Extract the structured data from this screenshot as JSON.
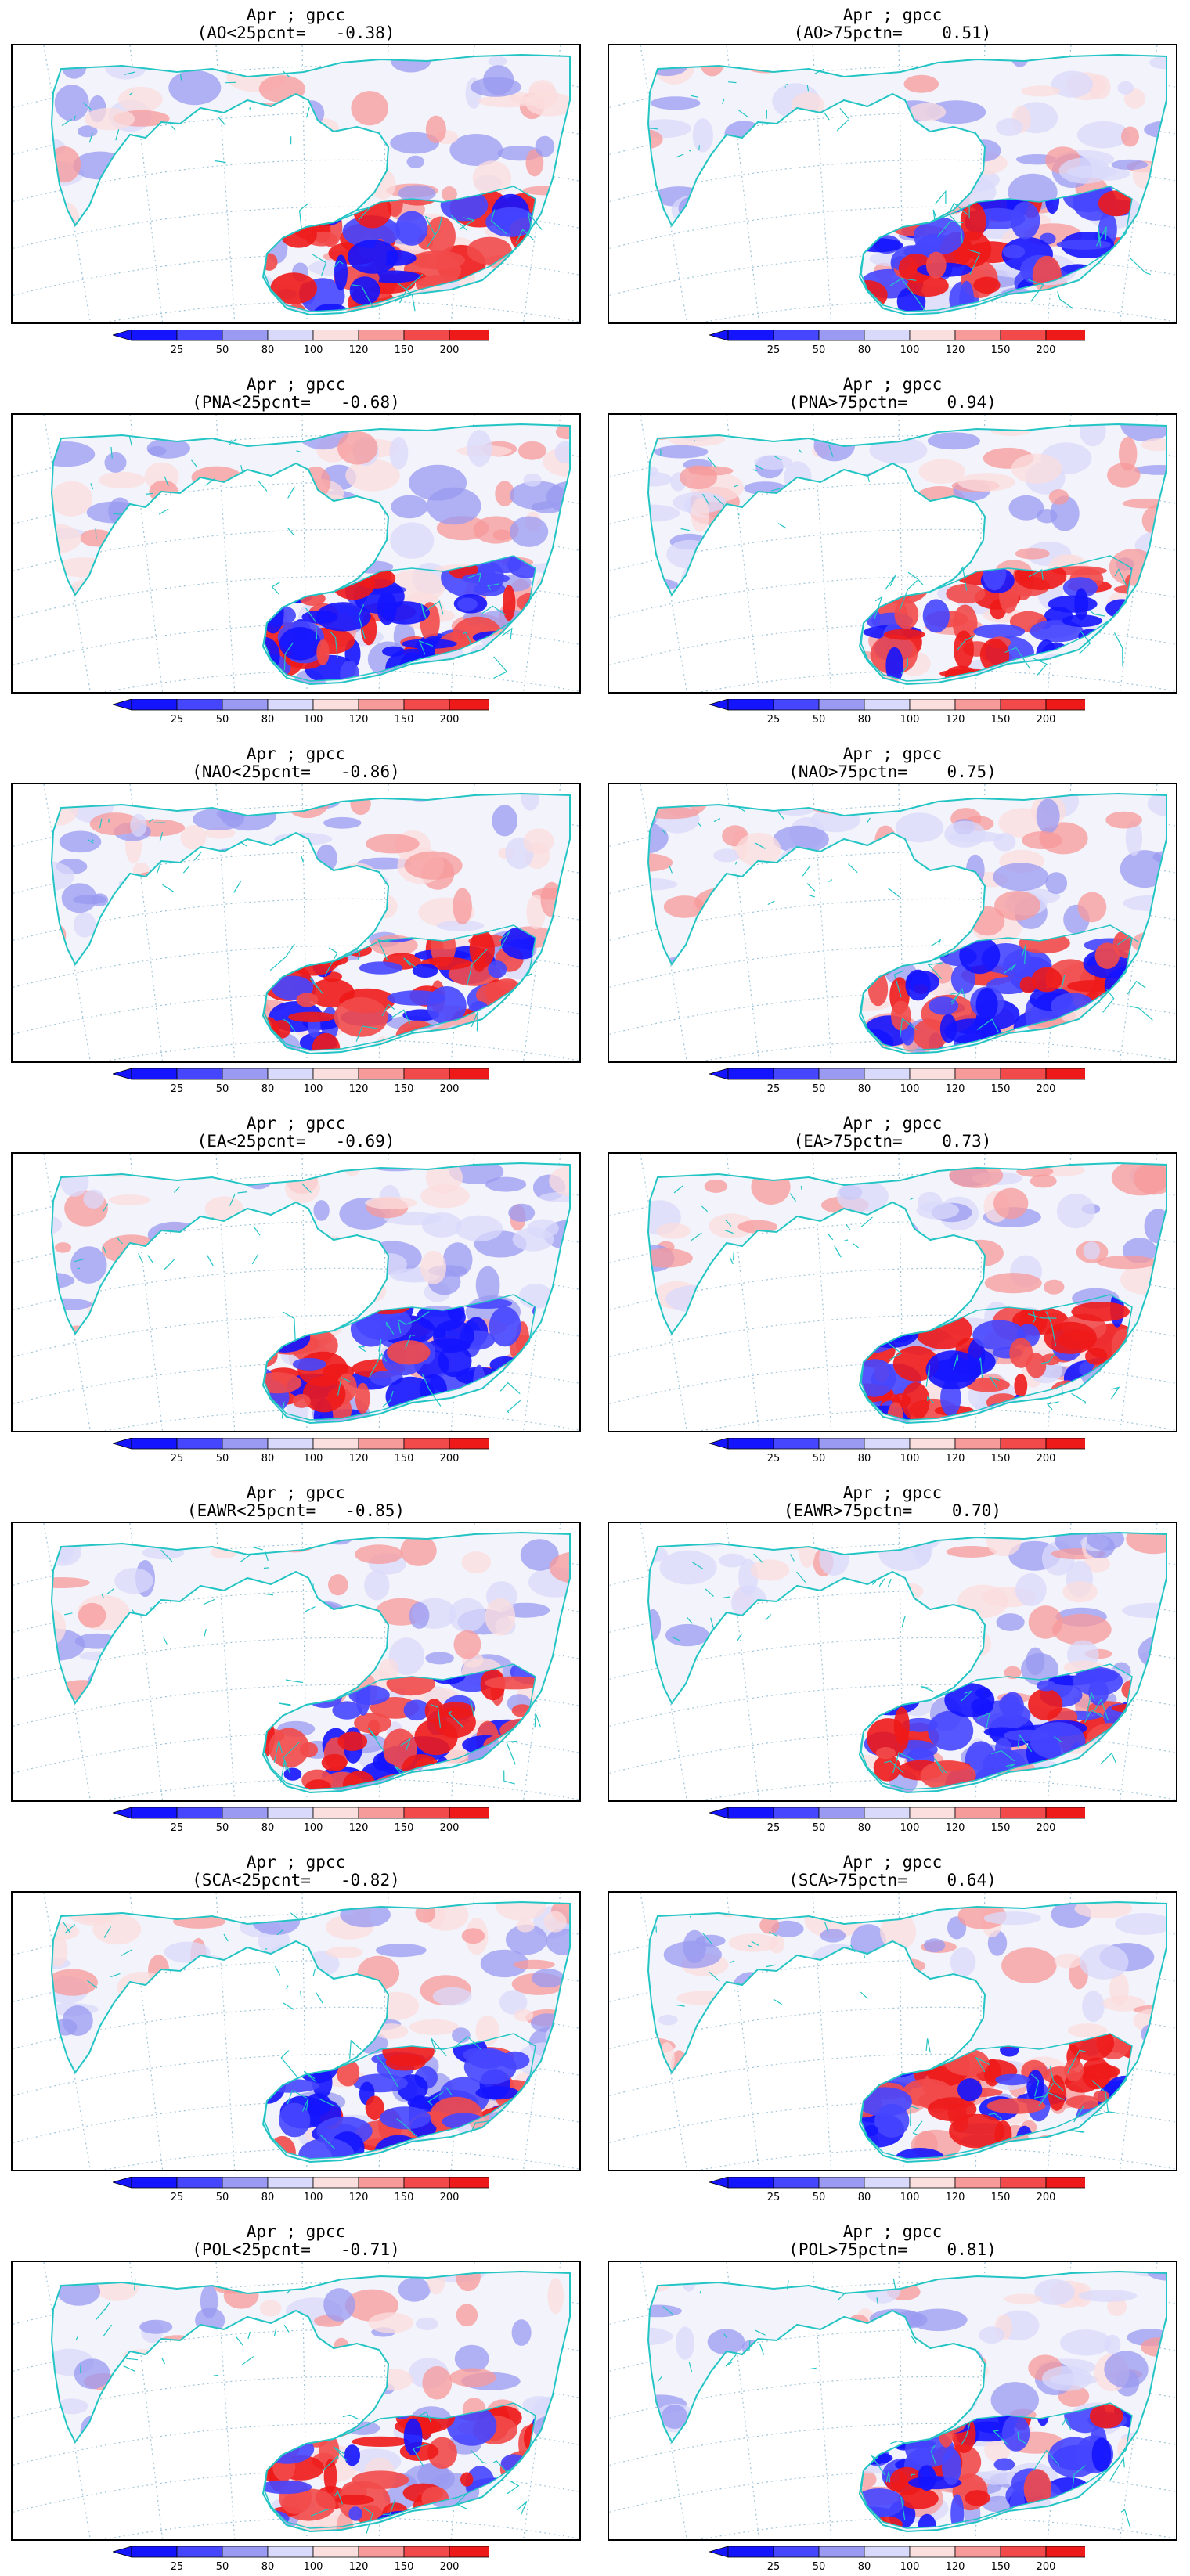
{
  "colorbar": {
    "ticks": [
      "25",
      "50",
      "80",
      "100",
      "120",
      "150",
      "200"
    ],
    "colors": [
      "#1414ff",
      "#4646ff",
      "#9a9af2",
      "#d9d9fb",
      "#fbdede",
      "#f79a9a",
      "#f24a4a",
      "#ee1a1a"
    ]
  },
  "colors": {
    "coast": "#22c4c4",
    "gridline": "#9fc3d8",
    "frame": "#000000"
  },
  "panels": [
    {
      "line1": "Apr ; gpcc",
      "line2": "(AO<25pcnt=   -0.38)"
    },
    {
      "line1": "Apr ; gpcc",
      "line2": "(AO>75pctn=    0.51)"
    },
    {
      "line1": "Apr ; gpcc",
      "line2": "(PNA<25pcnt=   -0.68)"
    },
    {
      "line1": "Apr ; gpcc",
      "line2": "(PNA>75pctn=    0.94)"
    },
    {
      "line1": "Apr ; gpcc",
      "line2": "(NAO<25pcnt=   -0.86)"
    },
    {
      "line1": "Apr ; gpcc",
      "line2": "(NAO>75pctn=    0.75)"
    },
    {
      "line1": "Apr ; gpcc",
      "line2": "(EA<25pcnt=   -0.69)"
    },
    {
      "line1": "Apr ; gpcc",
      "line2": "(EA>75pctn=    0.73)"
    },
    {
      "line1": "Apr ; gpcc",
      "line2": "(EAWR<25pcnt=   -0.85)"
    },
    {
      "line1": "Apr ; gpcc",
      "line2": "(EAWR>75pctn=    0.70)"
    },
    {
      "line1": "Apr ; gpcc",
      "line2": "(SCA<25pcnt=   -0.82)"
    },
    {
      "line1": "Apr ; gpcc",
      "line2": "(SCA>75pctn=    0.64)"
    },
    {
      "line1": "Apr ; gpcc",
      "line2": "(POL<25pcnt=   -0.71)"
    },
    {
      "line1": "Apr ; gpcc",
      "line2": "(POL>75pctn=    0.81)"
    }
  ]
}
